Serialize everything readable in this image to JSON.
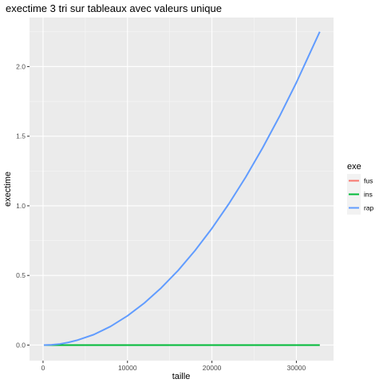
{
  "chart_data": {
    "type": "line",
    "title": "exectime 3 tri sur tableaux avec valeurs unique",
    "xlabel": "taille",
    "ylabel": "exectime",
    "xlim": [
      -1600,
      34400
    ],
    "ylim": [
      -0.112,
      2.352
    ],
    "x_ticks": [
      0,
      10000,
      20000,
      30000
    ],
    "x_tick_labels": [
      "0",
      "10000",
      "20000",
      "30000"
    ],
    "y_ticks": [
      0.0,
      0.5,
      1.0,
      1.5,
      2.0
    ],
    "y_tick_labels": [
      "0.0",
      "0.5",
      "1.0",
      "1.5",
      "2.0"
    ],
    "grid": true,
    "legend_title": "exe",
    "legend_position": "right",
    "series": [
      {
        "name": "fus",
        "color": "#F8766D",
        "x": [
          100,
          1000,
          2000,
          4000,
          6000,
          8000,
          10000,
          12000,
          14000,
          16000,
          18000,
          20000,
          22000,
          24000,
          26000,
          28000,
          30000,
          32768
        ],
        "y": [
          0,
          0,
          0,
          0,
          0,
          0,
          0,
          0,
          0,
          0,
          0,
          0,
          0,
          0,
          0,
          0,
          0,
          0
        ]
      },
      {
        "name": "ins",
        "color": "#00BA38",
        "x": [
          100,
          1000,
          2000,
          4000,
          6000,
          8000,
          10000,
          12000,
          14000,
          16000,
          18000,
          20000,
          22000,
          24000,
          26000,
          28000,
          30000,
          32768
        ],
        "y": [
          0,
          0,
          0,
          0,
          0,
          0,
          0,
          0,
          0,
          0,
          0,
          0,
          0,
          0,
          0,
          0,
          0,
          0
        ]
      },
      {
        "name": "rap",
        "color": "#619CFF",
        "x": [
          100,
          1000,
          2000,
          3000,
          4000,
          6000,
          8000,
          10000,
          12000,
          14000,
          16000,
          18000,
          20000,
          22000,
          24000,
          26000,
          28000,
          30000,
          32768
        ],
        "y": [
          0.0,
          0.002,
          0.008,
          0.019,
          0.034,
          0.075,
          0.134,
          0.21,
          0.302,
          0.411,
          0.536,
          0.679,
          0.838,
          1.014,
          1.206,
          1.416,
          1.642,
          1.885,
          2.25
        ]
      }
    ]
  }
}
